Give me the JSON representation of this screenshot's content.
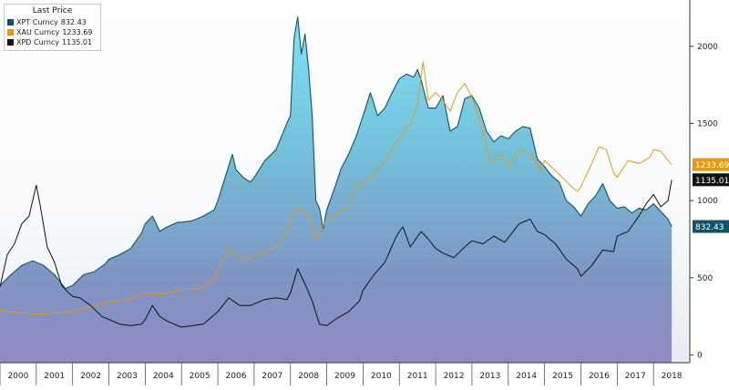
{
  "chart_data": {
    "type": "area",
    "legend_title": "Last Price",
    "legend_placement": "top-left",
    "y_axis_position": "right",
    "ylim": [
      -50,
      2300
    ],
    "yticks": [
      0,
      500,
      1000,
      1500,
      2000
    ],
    "xlim": [
      2000,
      2019
    ],
    "grid": false,
    "x_labels": [
      "2000",
      "2001",
      "2002",
      "2003",
      "2004",
      "2005",
      "2006",
      "2007",
      "2008",
      "2009",
      "2010",
      "2011",
      "2012",
      "2013",
      "2014",
      "2015",
      "2016",
      "2017",
      "2018"
    ],
    "series": [
      {
        "name": "XPT Curncy",
        "last": "832.43",
        "color": "#0d5566",
        "style": "area",
        "points": [
          [
            2000.0,
            450
          ],
          [
            2000.3,
            520
          ],
          [
            2000.6,
            580
          ],
          [
            2000.9,
            610
          ],
          [
            2001.0,
            600
          ],
          [
            2001.2,
            580
          ],
          [
            2001.5,
            520
          ],
          [
            2001.8,
            430
          ],
          [
            2002.0,
            450
          ],
          [
            2002.3,
            520
          ],
          [
            2002.6,
            540
          ],
          [
            2002.9,
            590
          ],
          [
            2003.0,
            620
          ],
          [
            2003.3,
            650
          ],
          [
            2003.6,
            690
          ],
          [
            2003.9,
            790
          ],
          [
            2004.0,
            850
          ],
          [
            2004.2,
            900
          ],
          [
            2004.4,
            800
          ],
          [
            2004.6,
            830
          ],
          [
            2004.9,
            860
          ],
          [
            2005.0,
            860
          ],
          [
            2005.3,
            870
          ],
          [
            2005.6,
            900
          ],
          [
            2005.9,
            940
          ],
          [
            2006.0,
            1000
          ],
          [
            2006.2,
            1150
          ],
          [
            2006.4,
            1300
          ],
          [
            2006.5,
            1200
          ],
          [
            2006.7,
            1150
          ],
          [
            2006.9,
            1120
          ],
          [
            2007.0,
            1150
          ],
          [
            2007.3,
            1260
          ],
          [
            2007.6,
            1330
          ],
          [
            2007.9,
            1500
          ],
          [
            2008.0,
            1550
          ],
          [
            2008.1,
            2050
          ],
          [
            2008.2,
            2190
          ],
          [
            2008.3,
            1950
          ],
          [
            2008.4,
            2080
          ],
          [
            2008.5,
            1850
          ],
          [
            2008.6,
            1550
          ],
          [
            2008.7,
            1000
          ],
          [
            2008.8,
            950
          ],
          [
            2008.9,
            820
          ],
          [
            2009.0,
            940
          ],
          [
            2009.2,
            1070
          ],
          [
            2009.4,
            1210
          ],
          [
            2009.6,
            1300
          ],
          [
            2009.8,
            1410
          ],
          [
            2010.0,
            1550
          ],
          [
            2010.2,
            1700
          ],
          [
            2010.4,
            1550
          ],
          [
            2010.6,
            1600
          ],
          [
            2010.8,
            1700
          ],
          [
            2011.0,
            1790
          ],
          [
            2011.2,
            1820
          ],
          [
            2011.4,
            1800
          ],
          [
            2011.5,
            1850
          ],
          [
            2011.6,
            1780
          ],
          [
            2011.8,
            1600
          ],
          [
            2012.0,
            1600
          ],
          [
            2012.2,
            1680
          ],
          [
            2012.4,
            1450
          ],
          [
            2012.6,
            1480
          ],
          [
            2012.8,
            1660
          ],
          [
            2013.0,
            1680
          ],
          [
            2013.2,
            1600
          ],
          [
            2013.4,
            1450
          ],
          [
            2013.6,
            1380
          ],
          [
            2013.8,
            1420
          ],
          [
            2014.0,
            1400
          ],
          [
            2014.2,
            1450
          ],
          [
            2014.4,
            1480
          ],
          [
            2014.6,
            1470
          ],
          [
            2014.8,
            1270
          ],
          [
            2015.0,
            1220
          ],
          [
            2015.2,
            1160
          ],
          [
            2015.4,
            1120
          ],
          [
            2015.6,
            1000
          ],
          [
            2015.8,
            960
          ],
          [
            2016.0,
            900
          ],
          [
            2016.2,
            980
          ],
          [
            2016.4,
            1030
          ],
          [
            2016.6,
            1110
          ],
          [
            2016.8,
            1000
          ],
          [
            2017.0,
            950
          ],
          [
            2017.2,
            960
          ],
          [
            2017.4,
            920
          ],
          [
            2017.6,
            950
          ],
          [
            2017.8,
            940
          ],
          [
            2018.0,
            980
          ],
          [
            2018.2,
            930
          ],
          [
            2018.4,
            880
          ],
          [
            2018.5,
            832
          ]
        ]
      },
      {
        "name": "XAU Curncy",
        "last": "1233.69",
        "color": "#e69a14",
        "style": "line",
        "points": [
          [
            2000.0,
            290
          ],
          [
            2000.5,
            275
          ],
          [
            2001.0,
            265
          ],
          [
            2001.5,
            270
          ],
          [
            2002.0,
            280
          ],
          [
            2002.5,
            315
          ],
          [
            2003.0,
            345
          ],
          [
            2003.5,
            360
          ],
          [
            2004.0,
            400
          ],
          [
            2004.5,
            395
          ],
          [
            2005.0,
            425
          ],
          [
            2005.5,
            430
          ],
          [
            2005.9,
            490
          ],
          [
            2006.0,
            560
          ],
          [
            2006.3,
            690
          ],
          [
            2006.6,
            620
          ],
          [
            2007.0,
            640
          ],
          [
            2007.3,
            670
          ],
          [
            2007.6,
            700
          ],
          [
            2007.9,
            800
          ],
          [
            2008.0,
            880
          ],
          [
            2008.2,
            960
          ],
          [
            2008.5,
            900
          ],
          [
            2008.7,
            750
          ],
          [
            2008.8,
            800
          ],
          [
            2009.0,
            880
          ],
          [
            2009.3,
            920
          ],
          [
            2009.6,
            960
          ],
          [
            2009.8,
            1100
          ],
          [
            2010.0,
            1110
          ],
          [
            2010.3,
            1180
          ],
          [
            2010.6,
            1250
          ],
          [
            2010.9,
            1380
          ],
          [
            2011.0,
            1400
          ],
          [
            2011.3,
            1500
          ],
          [
            2011.5,
            1620
          ],
          [
            2011.65,
            1900
          ],
          [
            2011.8,
            1650
          ],
          [
            2012.0,
            1700
          ],
          [
            2012.2,
            1650
          ],
          [
            2012.4,
            1580
          ],
          [
            2012.6,
            1700
          ],
          [
            2012.8,
            1760
          ],
          [
            2013.0,
            1670
          ],
          [
            2013.3,
            1450
          ],
          [
            2013.5,
            1250
          ],
          [
            2013.8,
            1300
          ],
          [
            2014.0,
            1220
          ],
          [
            2014.3,
            1330
          ],
          [
            2014.6,
            1300
          ],
          [
            2014.9,
            1200
          ],
          [
            2015.0,
            1260
          ],
          [
            2015.4,
            1170
          ],
          [
            2015.7,
            1100
          ],
          [
            2015.9,
            1060
          ],
          [
            2016.0,
            1090
          ],
          [
            2016.3,
            1240
          ],
          [
            2016.5,
            1350
          ],
          [
            2016.7,
            1330
          ],
          [
            2016.9,
            1180
          ],
          [
            2017.0,
            1150
          ],
          [
            2017.3,
            1260
          ],
          [
            2017.6,
            1240
          ],
          [
            2017.9,
            1280
          ],
          [
            2018.0,
            1330
          ],
          [
            2018.2,
            1320
          ],
          [
            2018.4,
            1260
          ],
          [
            2018.5,
            1233
          ]
        ]
      },
      {
        "name": "XPD Curncy",
        "last": "1135.01",
        "color": "#111111",
        "style": "line",
        "points": [
          [
            2000.0,
            440
          ],
          [
            2000.2,
            650
          ],
          [
            2000.4,
            720
          ],
          [
            2000.6,
            850
          ],
          [
            2000.8,
            900
          ],
          [
            2001.0,
            1100
          ],
          [
            2001.1,
            980
          ],
          [
            2001.3,
            700
          ],
          [
            2001.5,
            600
          ],
          [
            2001.7,
            450
          ],
          [
            2001.9,
            400
          ],
          [
            2002.0,
            380
          ],
          [
            2002.2,
            370
          ],
          [
            2002.5,
            320
          ],
          [
            2002.8,
            250
          ],
          [
            2003.0,
            230
          ],
          [
            2003.3,
            200
          ],
          [
            2003.6,
            190
          ],
          [
            2003.9,
            200
          ],
          [
            2004.0,
            230
          ],
          [
            2004.2,
            320
          ],
          [
            2004.4,
            250
          ],
          [
            2004.6,
            220
          ],
          [
            2004.9,
            190
          ],
          [
            2005.0,
            180
          ],
          [
            2005.3,
            190
          ],
          [
            2005.6,
            200
          ],
          [
            2005.9,
            260
          ],
          [
            2006.0,
            280
          ],
          [
            2006.3,
            370
          ],
          [
            2006.6,
            320
          ],
          [
            2006.9,
            320
          ],
          [
            2007.0,
            330
          ],
          [
            2007.3,
            360
          ],
          [
            2007.6,
            370
          ],
          [
            2007.9,
            360
          ],
          [
            2008.0,
            400
          ],
          [
            2008.2,
            560
          ],
          [
            2008.4,
            460
          ],
          [
            2008.6,
            350
          ],
          [
            2008.8,
            200
          ],
          [
            2009.0,
            190
          ],
          [
            2009.3,
            240
          ],
          [
            2009.6,
            280
          ],
          [
            2009.9,
            350
          ],
          [
            2010.0,
            420
          ],
          [
            2010.3,
            520
          ],
          [
            2010.6,
            600
          ],
          [
            2010.9,
            760
          ],
          [
            2011.0,
            800
          ],
          [
            2011.1,
            830
          ],
          [
            2011.3,
            700
          ],
          [
            2011.6,
            800
          ],
          [
            2011.8,
            750
          ],
          [
            2012.0,
            690
          ],
          [
            2012.2,
            660
          ],
          [
            2012.5,
            630
          ],
          [
            2012.8,
            700
          ],
          [
            2013.0,
            740
          ],
          [
            2013.3,
            720
          ],
          [
            2013.6,
            770
          ],
          [
            2013.9,
            730
          ],
          [
            2014.0,
            760
          ],
          [
            2014.3,
            850
          ],
          [
            2014.6,
            880
          ],
          [
            2014.8,
            800
          ],
          [
            2015.0,
            780
          ],
          [
            2015.3,
            720
          ],
          [
            2015.6,
            620
          ],
          [
            2015.9,
            560
          ],
          [
            2016.0,
            510
          ],
          [
            2016.3,
            580
          ],
          [
            2016.6,
            680
          ],
          [
            2016.9,
            670
          ],
          [
            2017.0,
            770
          ],
          [
            2017.3,
            800
          ],
          [
            2017.6,
            900
          ],
          [
            2017.8,
            980
          ],
          [
            2018.0,
            1040
          ],
          [
            2018.2,
            960
          ],
          [
            2018.4,
            1000
          ],
          [
            2018.5,
            1135
          ]
        ]
      }
    ]
  }
}
